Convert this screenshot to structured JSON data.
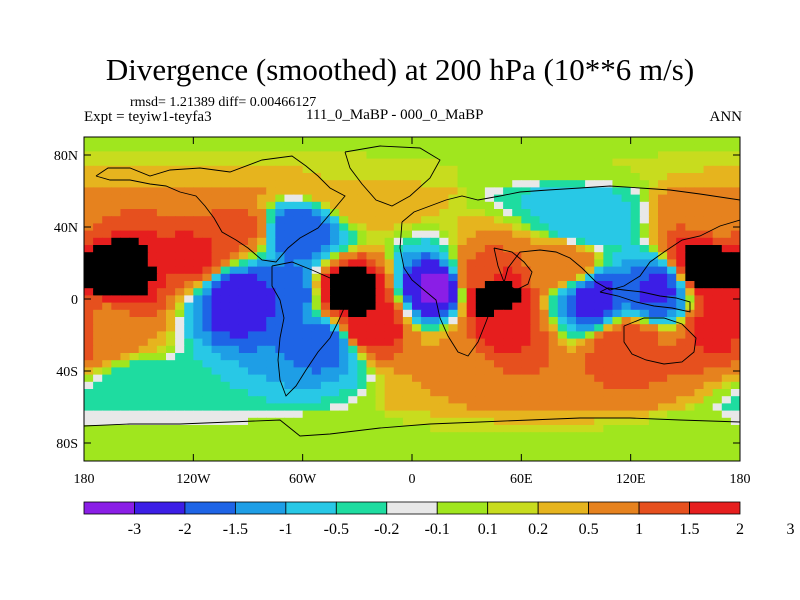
{
  "chart_data": {
    "type": "heatmap",
    "title": "Divergence (smoothed) at 200 hPa (10**6 m/s)",
    "stats_text": "rmsd= 1.21389 diff= 0.00466127",
    "left_label": "Expt = teyiw1-teyfa3",
    "center_label": "111_0_MaBP - 000_0_MaBP",
    "right_label": "ANN",
    "x_ticks": [
      {
        "value": -180,
        "label": "180"
      },
      {
        "value": -120,
        "label": "120W"
      },
      {
        "value": -60,
        "label": "60W"
      },
      {
        "value": 0,
        "label": "0"
      },
      {
        "value": 60,
        "label": "60E"
      },
      {
        "value": 120,
        "label": "120E"
      },
      {
        "value": 180,
        "label": "180"
      }
    ],
    "y_ticks": [
      {
        "value": 80,
        "label": "80N"
      },
      {
        "value": 40,
        "label": "40N"
      },
      {
        "value": 0,
        "label": "0"
      },
      {
        "value": -40,
        "label": "40S"
      },
      {
        "value": -80,
        "label": "80S"
      }
    ],
    "xlim": [
      -180,
      180
    ],
    "ylim": [
      -90,
      90
    ],
    "colorbar": {
      "labels": [
        "-3",
        "-2",
        "-1.5",
        "-1",
        "-0.5",
        "-0.2",
        "-0.1",
        "0.1",
        "0.2",
        "0.5",
        "1",
        "1.5",
        "2",
        "3"
      ],
      "colors": [
        "#8a1ee6",
        "#3c1ee6",
        "#1e64e6",
        "#1e9ee6",
        "#28c8e6",
        "#1edca0",
        "#e8e8e8",
        "#a0e61e",
        "#c8dc1e",
        "#e6b41e",
        "#e6821e",
        "#e6501e",
        "#e61e1e"
      ]
    },
    "field_samples": [
      {
        "lon": -162,
        "lat": 15,
        "value": 2.5
      },
      {
        "lon": -168,
        "lat": -15,
        "value": 0.8
      },
      {
        "lon": -120,
        "lat": 25,
        "value": 1.6
      },
      {
        "lon": -95,
        "lat": 40,
        "value": 1.2
      },
      {
        "lon": -110,
        "lat": 62,
        "value": 0.7
      },
      {
        "lon": -62,
        "lat": 38,
        "value": -2.0
      },
      {
        "lon": -95,
        "lat": 0,
        "value": -2.5
      },
      {
        "lon": -70,
        "lat": 2,
        "value": -2.0
      },
      {
        "lon": -48,
        "lat": -25,
        "value": -1.8
      },
      {
        "lon": -35,
        "lat": 3,
        "value": 2.5
      },
      {
        "lon": -25,
        "lat": -15,
        "value": 2.0
      },
      {
        "lon": 15,
        "lat": 6,
        "value": -3.2
      },
      {
        "lon": 35,
        "lat": 12,
        "value": 1.2
      },
      {
        "lon": 42,
        "lat": 2,
        "value": 2.5
      },
      {
        "lon": 50,
        "lat": -18,
        "value": 1.6
      },
      {
        "lon": 85,
        "lat": 20,
        "value": 0.9
      },
      {
        "lon": 100,
        "lat": 0,
        "value": -2.2
      },
      {
        "lon": 135,
        "lat": 5,
        "value": -2.1
      },
      {
        "lon": 160,
        "lat": 18,
        "value": 2.4
      },
      {
        "lon": 170,
        "lat": -15,
        "value": 1.7
      },
      {
        "lon": 118,
        "lat": -25,
        "value": 1.3
      },
      {
        "lon": 20,
        "lat": -35,
        "value": 0.5
      },
      {
        "lon": 95,
        "lat": 42,
        "value": -0.9
      },
      {
        "lon": -150,
        "lat": -50,
        "value": -0.4
      },
      {
        "lon": -30,
        "lat": 55,
        "value": 0.5
      },
      {
        "lon": 170,
        "lat": 45,
        "value": 0.9
      }
    ]
  }
}
